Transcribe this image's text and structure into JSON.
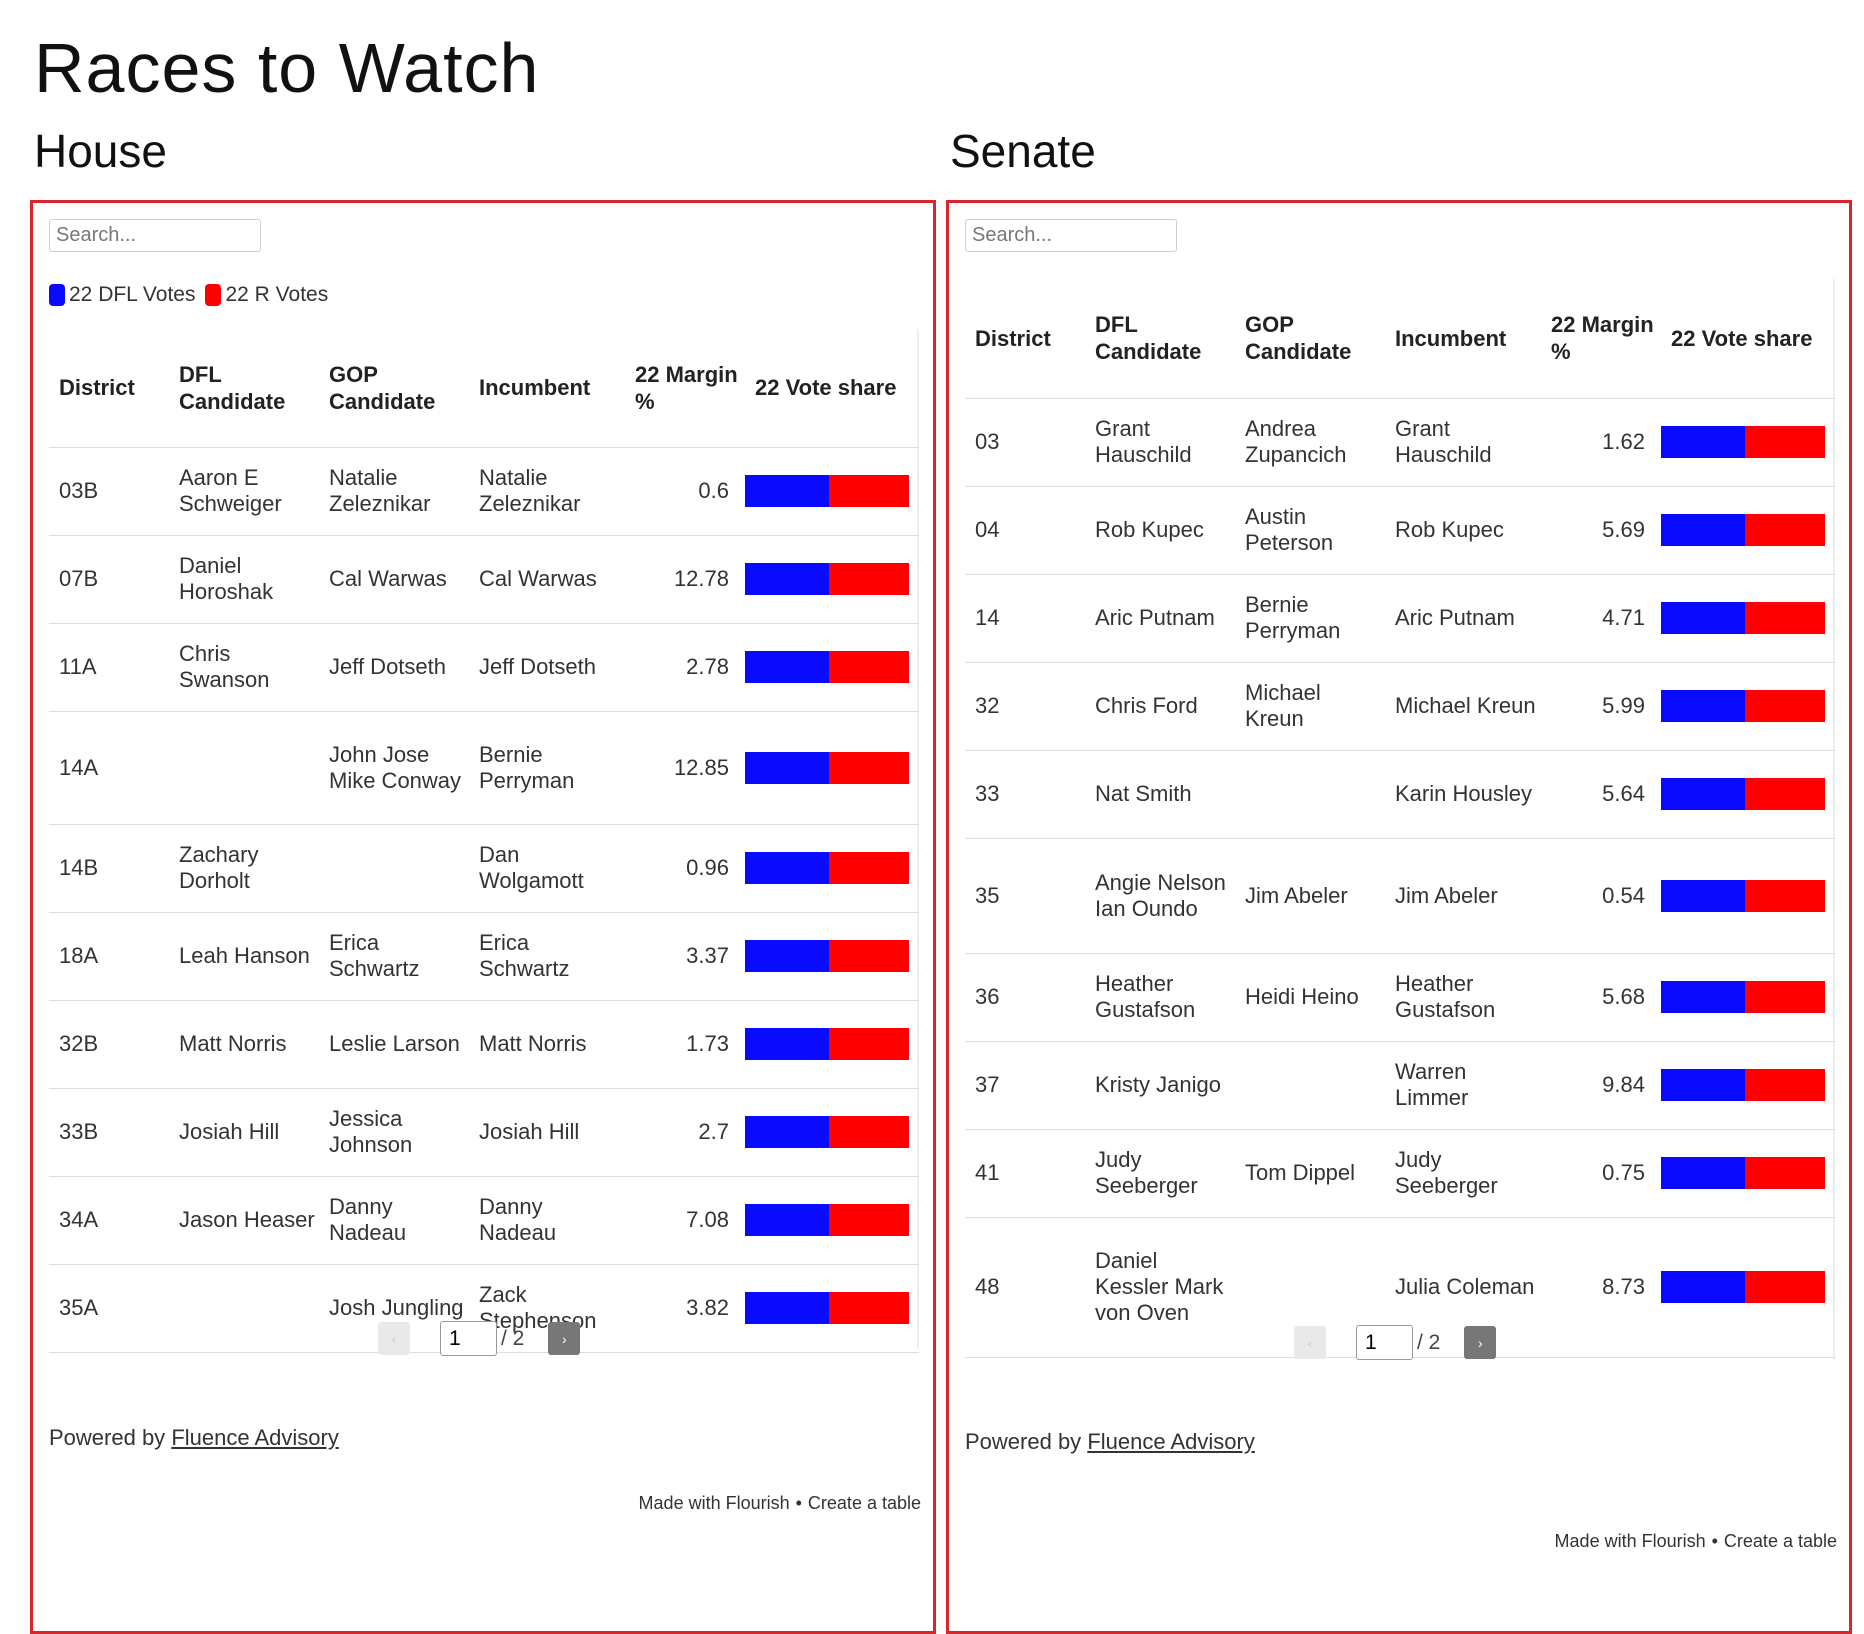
{
  "page_title": "Races to Watch",
  "colors": {
    "dfl": "#0a0aff",
    "r": "#ff0000",
    "border": "#d9262c"
  },
  "house": {
    "title": "House",
    "search_placeholder": "Search...",
    "legend": {
      "dfl": "22 DFL Votes",
      "r": "22 R Votes"
    },
    "headers": [
      "District",
      "DFL Candidate",
      "GOP Candidate",
      "Incumbent",
      "22 Margin %",
      "22 Vote share"
    ],
    "rows": [
      {
        "district": "03B",
        "dfl": "Aaron E Schweiger",
        "gop": "Natalie Zeleznikar",
        "incumbent": "Natalie Zeleznikar",
        "margin": "0.6",
        "dfl_share": 0.51
      },
      {
        "district": "07B",
        "dfl": "Daniel Horoshak",
        "gop": "Cal Warwas",
        "incumbent": "Cal Warwas",
        "margin": "12.78",
        "dfl_share": 0.51
      },
      {
        "district": "11A",
        "dfl": "Chris Swanson",
        "gop": "Jeff Dotseth",
        "incumbent": "Jeff Dotseth",
        "margin": "2.78",
        "dfl_share": 0.51
      },
      {
        "district": "14A",
        "dfl": "",
        "gop": "John Jose Mike Conway",
        "incumbent": "Bernie Perryman",
        "margin": "12.85",
        "dfl_share": 0.51
      },
      {
        "district": "14B",
        "dfl": "Zachary Dorholt",
        "gop": "",
        "incumbent": "Dan Wolgamott",
        "margin": "0.96",
        "dfl_share": 0.51
      },
      {
        "district": "18A",
        "dfl": "Leah Hanson",
        "gop": "Erica Schwartz",
        "incumbent": "Erica Schwartz",
        "margin": "3.37",
        "dfl_share": 0.51
      },
      {
        "district": "32B",
        "dfl": "Matt Norris",
        "gop": "Leslie Larson",
        "incumbent": "Matt Norris",
        "margin": "1.73",
        "dfl_share": 0.51
      },
      {
        "district": "33B",
        "dfl": "Josiah Hill",
        "gop": "Jessica Johnson",
        "incumbent": "Josiah Hill",
        "margin": "2.7",
        "dfl_share": 0.51
      },
      {
        "district": "34A",
        "dfl": "Jason Heaser",
        "gop": "Danny Nadeau",
        "incumbent": "Danny Nadeau",
        "margin": "7.08",
        "dfl_share": 0.51
      },
      {
        "district": "35A",
        "dfl": "",
        "gop": "Josh Jungling",
        "incumbent": "Zack Stephenson",
        "margin": "3.82",
        "dfl_share": 0.51
      }
    ],
    "pager": {
      "prev": "‹",
      "current": "1",
      "total": "/ 2",
      "next": "›"
    },
    "powered_prefix": "Powered by",
    "powered_link": "Fluence Advisory",
    "made_with": "Made with Flourish",
    "create": "Create a table"
  },
  "senate": {
    "title": "Senate",
    "search_placeholder": "Search...",
    "headers": [
      "District",
      "DFL Candidate",
      "GOP Candidate",
      "Incumbent",
      "22 Margin %",
      "22 Vote share"
    ],
    "rows": [
      {
        "district": "03",
        "dfl": "Grant Hauschild",
        "gop": "Andrea Zupancich",
        "incumbent": "Grant Hauschild",
        "margin": "1.62",
        "dfl_share": 0.51
      },
      {
        "district": "04",
        "dfl": "Rob Kupec",
        "gop": "Austin Peterson",
        "incumbent": "Rob Kupec",
        "margin": "5.69",
        "dfl_share": 0.51
      },
      {
        "district": "14",
        "dfl": "Aric Putnam",
        "gop": "Bernie Perryman",
        "incumbent": "Aric Putnam",
        "margin": "4.71",
        "dfl_share": 0.51
      },
      {
        "district": "32",
        "dfl": "Chris Ford",
        "gop": "Michael Kreun",
        "incumbent": "Michael Kreun",
        "margin": "5.99",
        "dfl_share": 0.51
      },
      {
        "district": "33",
        "dfl": "Nat Smith",
        "gop": "",
        "incumbent": "Karin Housley",
        "margin": "5.64",
        "dfl_share": 0.51
      },
      {
        "district": "35",
        "dfl": "Angie Nelson Ian Oundo",
        "gop": "Jim Abeler",
        "incumbent": "Jim Abeler",
        "margin": "0.54",
        "dfl_share": 0.51
      },
      {
        "district": "36",
        "dfl": "Heather Gustafson",
        "gop": "Heidi Heino",
        "incumbent": "Heather Gustafson",
        "margin": "5.68",
        "dfl_share": 0.51
      },
      {
        "district": "37",
        "dfl": "Kristy Janigo",
        "gop": "",
        "incumbent": "Warren Limmer",
        "margin": "9.84",
        "dfl_share": 0.51
      },
      {
        "district": "41",
        "dfl": "Judy Seeberger",
        "gop": "Tom Dippel",
        "incumbent": "Judy Seeberger",
        "margin": "0.75",
        "dfl_share": 0.51
      },
      {
        "district": "48",
        "dfl": "Daniel Kessler Mark von Oven",
        "gop": "",
        "incumbent": "Julia Coleman",
        "margin": "8.73",
        "dfl_share": 0.51
      }
    ],
    "pager": {
      "prev": "‹",
      "current": "1",
      "total": "/ 2",
      "next": "›"
    },
    "powered_prefix": "Powered by",
    "powered_link": "Fluence Advisory",
    "made_with": "Made with Flourish",
    "create": "Create a table"
  }
}
